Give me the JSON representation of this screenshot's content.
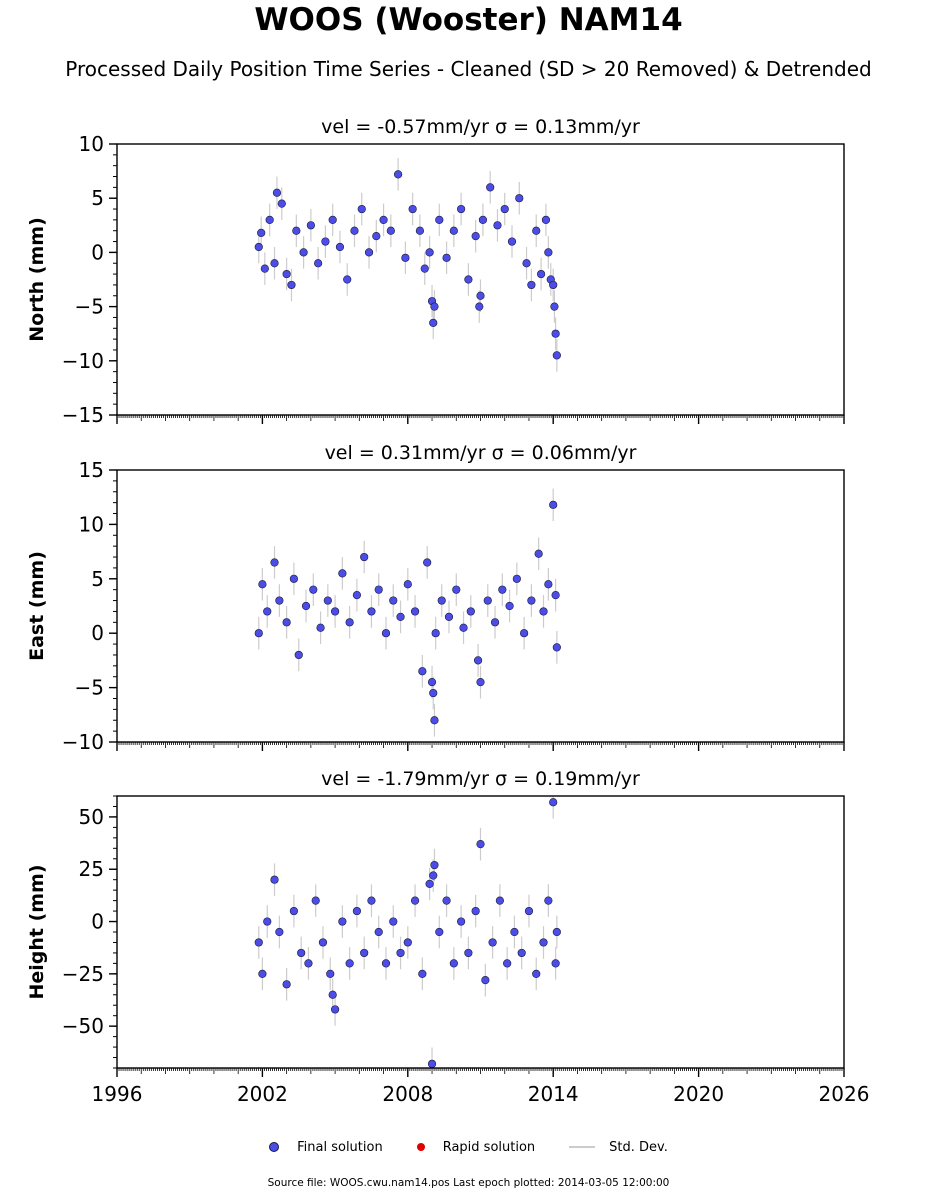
{
  "title": "WOOS (Wooster) NAM14",
  "subtitle": "Processed Daily Position Time Series - Cleaned (SD > 20 Removed) & Detrended",
  "legend": {
    "final": "Final solution",
    "rapid": "Rapid solution",
    "std": "Std. Dev."
  },
  "footer": "Source file: WOOS.cwu.nam14.pos  Last epoch plotted: 2014-03-05 12:00:00",
  "colors": {
    "final": "#4c4ce6",
    "rapid": "#e00000",
    "std": "#cccccc",
    "edge": "#1a1a3a"
  },
  "chart_data": [
    {
      "type": "scatter",
      "velocity_label": "vel = -0.57mm/yr   σ = 0.13mm/yr",
      "ylabel": "North (mm)",
      "ylim": [
        -15,
        10
      ],
      "yticks": [
        10,
        5,
        0,
        -5,
        -10,
        -15
      ],
      "xlim": [
        1996,
        2026
      ],
      "xticks": [
        1996,
        2002,
        2008,
        2014,
        2020,
        2026
      ],
      "x_tick_labels_shown": false,
      "series": [
        {
          "name": "Final solution",
          "x": [
            2001.85,
            2001.95,
            2002.1,
            2002.3,
            2002.5,
            2002.6,
            2002.8,
            2003.0,
            2003.2,
            2003.4,
            2003.7,
            2004.0,
            2004.3,
            2004.6,
            2004.9,
            2005.2,
            2005.5,
            2005.8,
            2006.1,
            2006.4,
            2006.7,
            2007.0,
            2007.3,
            2007.6,
            2007.9,
            2008.2,
            2008.5,
            2008.7,
            2008.9,
            2009.0,
            2009.05,
            2009.1,
            2009.3,
            2009.6,
            2009.9,
            2010.2,
            2010.5,
            2010.8,
            2010.95,
            2011.0,
            2011.1,
            2011.4,
            2011.7,
            2012.0,
            2012.3,
            2012.6,
            2012.9,
            2013.1,
            2013.3,
            2013.5,
            2013.7,
            2013.8,
            2013.9,
            2014.0,
            2014.05,
            2014.1,
            2014.15
          ],
          "y": [
            0.5,
            1.8,
            -1.5,
            3,
            -1,
            5.5,
            4.5,
            -2,
            -3,
            2,
            0,
            2.5,
            -1,
            1,
            3,
            0.5,
            -2.5,
            2,
            4,
            0,
            1.5,
            3,
            2,
            7.2,
            -0.5,
            4,
            2,
            -1.5,
            0,
            -4.5,
            -6.5,
            -5,
            3,
            -0.5,
            2,
            4,
            -2.5,
            1.5,
            -5,
            -4,
            3,
            6,
            2.5,
            4,
            1,
            5,
            -1,
            -3,
            2,
            -2,
            3,
            0,
            -2.5,
            -3,
            -5,
            -7.5,
            -9.5
          ]
        }
      ]
    },
    {
      "type": "scatter",
      "velocity_label": "vel = 0.31mm/yr   σ = 0.06mm/yr",
      "ylabel": "East (mm)",
      "ylim": [
        -10,
        15
      ],
      "yticks": [
        15,
        10,
        5,
        0,
        -5,
        -10
      ],
      "xlim": [
        1996,
        2026
      ],
      "xticks": [
        1996,
        2002,
        2008,
        2014,
        2020,
        2026
      ],
      "x_tick_labels_shown": false,
      "series": [
        {
          "name": "Final solution",
          "x": [
            2001.85,
            2002.0,
            2002.2,
            2002.5,
            2002.7,
            2003.0,
            2003.3,
            2003.5,
            2003.8,
            2004.1,
            2004.4,
            2004.7,
            2005.0,
            2005.3,
            2005.6,
            2005.9,
            2006.2,
            2006.5,
            2006.8,
            2007.1,
            2007.4,
            2007.7,
            2008.0,
            2008.3,
            2008.6,
            2008.8,
            2009.0,
            2009.05,
            2009.1,
            2009.15,
            2009.4,
            2009.7,
            2010.0,
            2010.3,
            2010.6,
            2010.9,
            2011.0,
            2011.3,
            2011.6,
            2011.9,
            2012.2,
            2012.5,
            2012.8,
            2013.1,
            2013.4,
            2013.6,
            2013.8,
            2014.0,
            2014.1,
            2014.15
          ],
          "y": [
            0,
            4.5,
            2,
            6.5,
            3,
            1,
            5,
            -2,
            2.5,
            4,
            0.5,
            3,
            2,
            5.5,
            1,
            3.5,
            7,
            2,
            4,
            0,
            3,
            1.5,
            4.5,
            2,
            -3.5,
            6.5,
            -4.5,
            -5.5,
            -8,
            0,
            3,
            1.5,
            4,
            0.5,
            2,
            -2.5,
            -4.5,
            3,
            1,
            4,
            2.5,
            5,
            0,
            3,
            7.3,
            2,
            4.5,
            11.8,
            3.5,
            -1.3
          ]
        }
      ]
    },
    {
      "type": "scatter",
      "velocity_label": "vel = -1.79mm/yr   σ = 0.19mm/yr",
      "ylabel": "Height (mm)",
      "ylim": [
        -70,
        60
      ],
      "yticks": [
        50,
        25,
        0,
        -25,
        -50
      ],
      "xlim": [
        1996,
        2026
      ],
      "xticks": [
        1996,
        2002,
        2008,
        2014,
        2020,
        2026
      ],
      "x_tick_labels_shown": true,
      "series": [
        {
          "name": "Final solution",
          "x": [
            2001.85,
            2002.0,
            2002.2,
            2002.5,
            2002.7,
            2003.0,
            2003.3,
            2003.6,
            2003.9,
            2004.2,
            2004.5,
            2004.8,
            2004.9,
            2005.0,
            2005.3,
            2005.6,
            2005.9,
            2006.2,
            2006.5,
            2006.8,
            2007.1,
            2007.4,
            2007.7,
            2008.0,
            2008.3,
            2008.6,
            2008.9,
            2009.0,
            2009.05,
            2009.1,
            2009.3,
            2009.6,
            2009.9,
            2010.2,
            2010.5,
            2010.8,
            2011.0,
            2011.2,
            2011.5,
            2011.8,
            2012.1,
            2012.4,
            2012.7,
            2013.0,
            2013.3,
            2013.6,
            2013.8,
            2014.0,
            2014.1,
            2014.15
          ],
          "y": [
            -10,
            -25,
            0,
            20,
            -5,
            -30,
            5,
            -15,
            -20,
            10,
            -10,
            -25,
            -35,
            -42,
            0,
            -20,
            5,
            -15,
            10,
            -5,
            -20,
            0,
            -15,
            -10,
            10,
            -25,
            18,
            -68,
            22,
            27,
            -5,
            10,
            -20,
            0,
            -15,
            5,
            37,
            -28,
            -10,
            10,
            -20,
            -5,
            -15,
            5,
            -25,
            -10,
            10,
            57,
            -20,
            -5
          ]
        }
      ]
    }
  ]
}
